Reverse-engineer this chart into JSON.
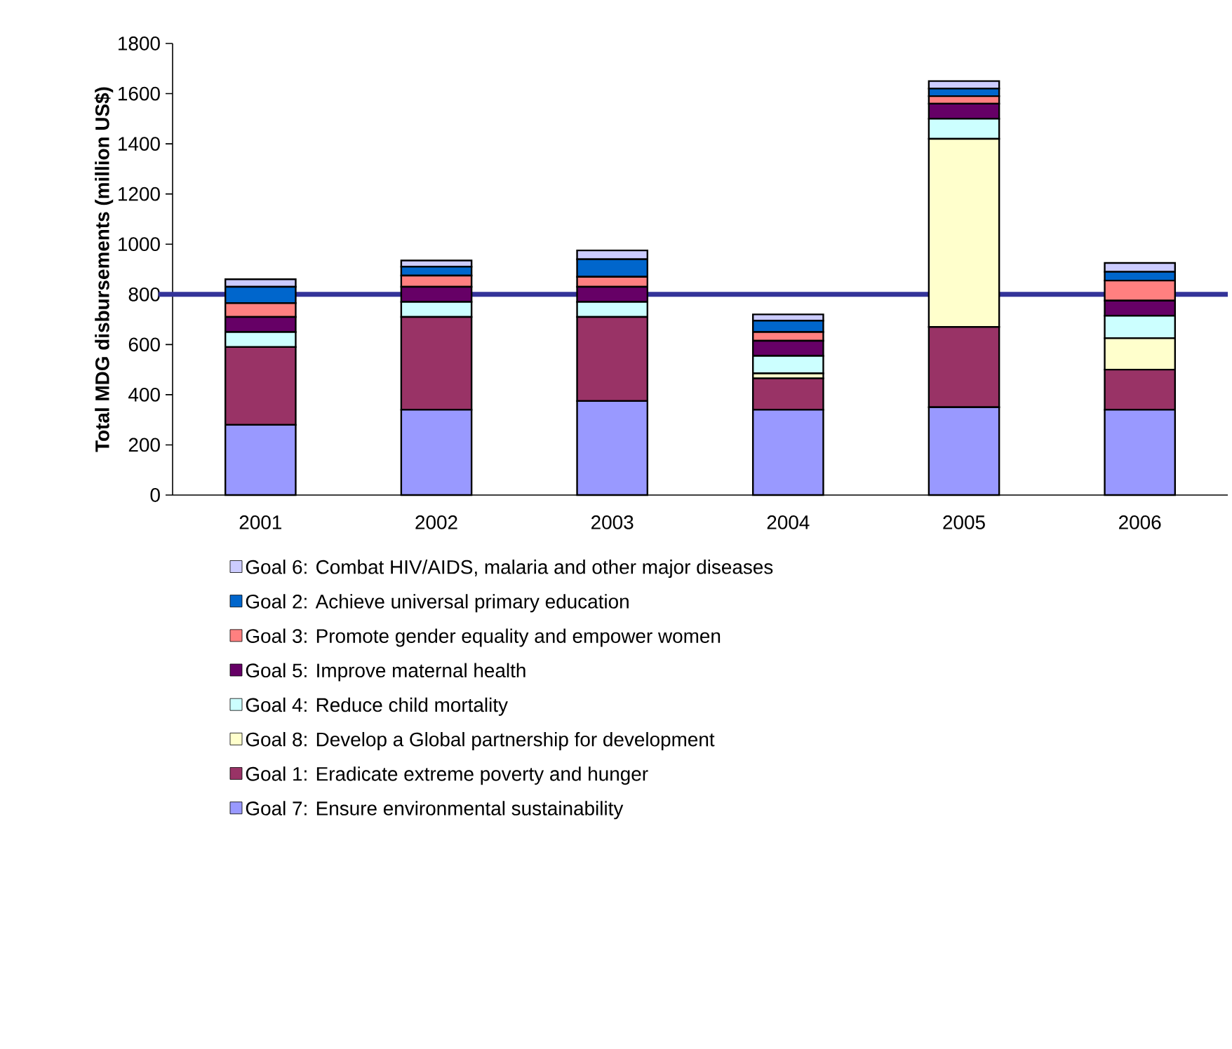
{
  "chart_data": {
    "type": "bar",
    "stacked": true,
    "ylabel": "Total MDG disbursements (million US$)",
    "categories": [
      "2001",
      "2002",
      "2003",
      "2004",
      "2005",
      "2006"
    ],
    "series": [
      {
        "name": "Goal 7: Ensure environmental sustainability",
        "color": "#9999ff",
        "values": [
          280,
          340,
          375,
          340,
          350,
          340
        ]
      },
      {
        "name": "Goal 1: Eradicate extreme poverty and hunger",
        "color": "#993366",
        "values": [
          310,
          370,
          335,
          125,
          320,
          160
        ]
      },
      {
        "name": "Goal 8: Develop a Global partnership for development",
        "color": "#ffffcc",
        "values": [
          0,
          0,
          0,
          20,
          750,
          125
        ]
      },
      {
        "name": "Goal 4: Reduce child mortality",
        "color": "#ccffff",
        "values": [
          60,
          60,
          60,
          70,
          80,
          90
        ]
      },
      {
        "name": "Goal 5: Improve maternal health",
        "color": "#660066",
        "values": [
          60,
          60,
          60,
          60,
          60,
          60
        ]
      },
      {
        "name": "Goal 3: Promote gender equality and empower women",
        "color": "#ff8080",
        "values": [
          55,
          45,
          40,
          35,
          30,
          80
        ]
      },
      {
        "name": "Goal 2: Achieve universal primary education",
        "color": "#0066cc",
        "values": [
          65,
          35,
          70,
          45,
          30,
          35
        ]
      },
      {
        "name": "Goal 6: Combat HIV/AIDS, malaria and other major diseases",
        "color": "#ccccff",
        "values": [
          30,
          25,
          35,
          25,
          30,
          35
        ]
      }
    ],
    "ylim": [
      0,
      1800
    ],
    "yticks": [
      0,
      200,
      400,
      600,
      800,
      1000,
      1200,
      1400,
      1600,
      1800
    ],
    "ref_lines": [
      {
        "axis": "y",
        "value": 800,
        "color": "#333399"
      }
    ],
    "grid": false,
    "legend": "bottom"
  }
}
